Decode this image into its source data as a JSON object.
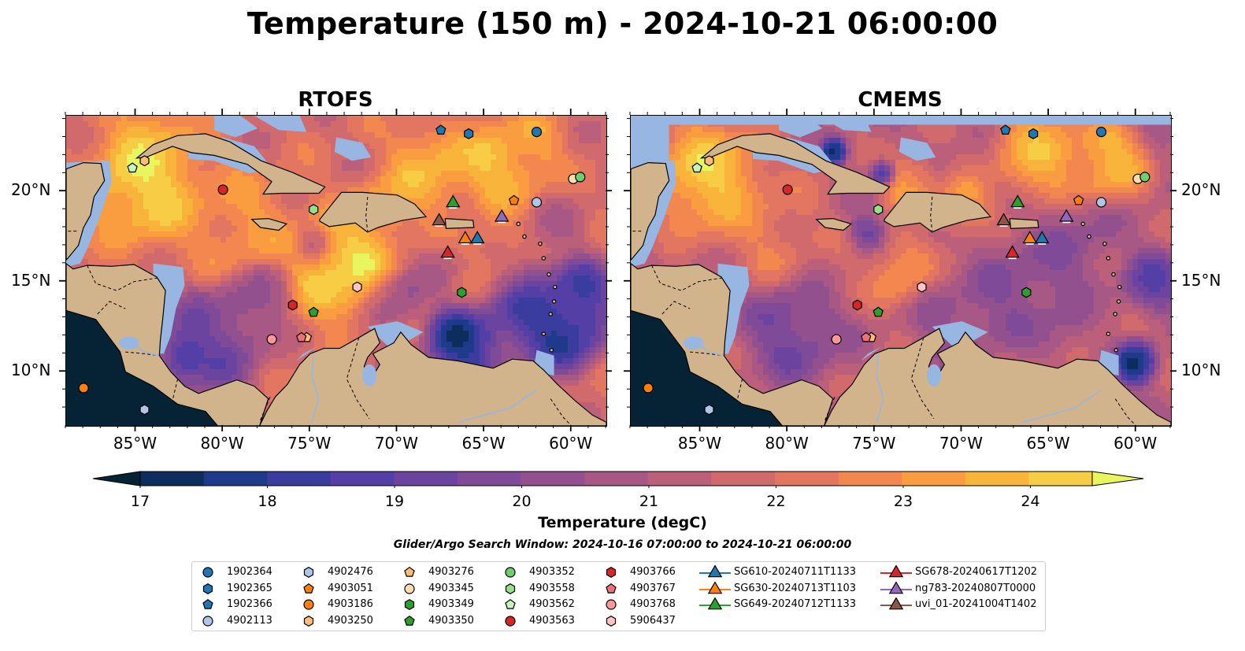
{
  "title": "Temperature (150 m) - 2024-10-21 06:00:00",
  "panels": [
    {
      "title": "RTOFS"
    },
    {
      "title": "CMEMS"
    }
  ],
  "map": {
    "lon_range": [
      -89,
      -58
    ],
    "lat_range": [
      7,
      24.2
    ],
    "x_ticks": [
      "85°W",
      "80°W",
      "75°W",
      "70°W",
      "65°W",
      "60°W"
    ],
    "y_ticks": [
      "20°N",
      "15°N",
      "10°N"
    ],
    "land_color": "#d2b48c",
    "shelf_color": "#97b6e1"
  },
  "colorbar": {
    "label": "Temperature (degC)",
    "ticks": [
      "17",
      "18",
      "19",
      "20",
      "21",
      "22",
      "23",
      "24"
    ],
    "range": [
      17,
      24.5
    ],
    "colors": [
      "#062336",
      "#0c2d5e",
      "#1f3a8a",
      "#3b3d9e",
      "#533fa6",
      "#6b44a0",
      "#7f4b98",
      "#93508e",
      "#a75885",
      "#bc5f7b",
      "#d16a6d",
      "#e27660",
      "#f28750",
      "#f99d40",
      "#f8b43a",
      "#f7cd45",
      "#e8f55e"
    ]
  },
  "search_window": "Glider/Argo Search Window: 2024-10-16 07:00:00 to 2024-10-21 06:00:00",
  "legend": [
    {
      "label": "1902364",
      "marker": "circle",
      "color": "#1f77b4"
    },
    {
      "label": "1902365",
      "marker": "hexagon",
      "color": "#1f77b4"
    },
    {
      "label": "1902366",
      "marker": "pentagon",
      "color": "#1f77b4"
    },
    {
      "label": "4902113",
      "marker": "circle",
      "color": "#aec7e8"
    },
    {
      "label": "4902476",
      "marker": "hexagon",
      "color": "#aec7e8"
    },
    {
      "label": "4903051",
      "marker": "pentagon",
      "color": "#ff7f0e"
    },
    {
      "label": "4903186",
      "marker": "circle",
      "color": "#ff7f0e"
    },
    {
      "label": "4903250",
      "marker": "hexagon",
      "color": "#ffbb78"
    },
    {
      "label": "4903276",
      "marker": "pentagon",
      "color": "#ffbb78"
    },
    {
      "label": "4903345",
      "marker": "circle",
      "color": "#ffddb0"
    },
    {
      "label": "4903349",
      "marker": "hexagon",
      "color": "#2ca02c"
    },
    {
      "label": "4903350",
      "marker": "pentagon",
      "color": "#2ca02c"
    },
    {
      "label": "4903352",
      "marker": "circle",
      "color": "#6fcf6f"
    },
    {
      "label": "4903558",
      "marker": "hexagon",
      "color": "#98df8a"
    },
    {
      "label": "4903562",
      "marker": "pentagon",
      "color": "#c7f5c0"
    },
    {
      "label": "4903563",
      "marker": "circle",
      "color": "#d62728"
    },
    {
      "label": "4903766",
      "marker": "hexagon",
      "color": "#d62728"
    },
    {
      "label": "4903767",
      "marker": "pentagon",
      "color": "#f0707a"
    },
    {
      "label": "4903768",
      "marker": "circle",
      "color": "#ff9896"
    },
    {
      "label": "5906437",
      "marker": "hexagon",
      "color": "#ffc4c4"
    },
    {
      "label": "SG610-20240711T1133",
      "marker": "triangle",
      "color": "#1f77b4"
    },
    {
      "label": "SG630-20240713T1103",
      "marker": "triangle",
      "color": "#ff7f0e"
    },
    {
      "label": "SG649-20240712T1133",
      "marker": "triangle",
      "color": "#2ca02c"
    },
    {
      "label": "SG678-20240617T1202",
      "marker": "triangle",
      "color": "#d62728"
    },
    {
      "label": "ng783-20240807T0000",
      "marker": "triangle",
      "color": "#9467bd"
    },
    {
      "label": "uvi_01-20241004T1402",
      "marker": "triangle",
      "color": "#8c564b"
    }
  ],
  "platforms": [
    {
      "id": "1902364",
      "lon": -62.0,
      "lat": 23.3
    },
    {
      "id": "1902365",
      "lon": -65.9,
      "lat": 23.2
    },
    {
      "id": "1902366",
      "lon": -67.5,
      "lat": 23.4
    },
    {
      "id": "4902113",
      "lon": -62.0,
      "lat": 19.4
    },
    {
      "id": "4902476",
      "lon": -84.5,
      "lat": 7.9
    },
    {
      "id": "4903051",
      "lon": -63.3,
      "lat": 19.5
    },
    {
      "id": "4903186",
      "lon": -88.0,
      "lat": 9.1
    },
    {
      "id": "4903250",
      "lon": -84.5,
      "lat": 21.7
    },
    {
      "id": "4903276",
      "lon": -75.2,
      "lat": 11.9
    },
    {
      "id": "4903345",
      "lon": -59.9,
      "lat": 20.7
    },
    {
      "id": "4903349",
      "lon": -66.3,
      "lat": 14.4
    },
    {
      "id": "4903350",
      "lon": -74.8,
      "lat": 13.3
    },
    {
      "id": "4903352",
      "lon": -59.5,
      "lat": 20.8
    },
    {
      "id": "4903558",
      "lon": -74.8,
      "lat": 19.0
    },
    {
      "id": "4903562",
      "lon": -85.2,
      "lat": 21.3
    },
    {
      "id": "4903563",
      "lon": -80.0,
      "lat": 20.1
    },
    {
      "id": "4903766",
      "lon": -76.0,
      "lat": 13.7
    },
    {
      "id": "4903767",
      "lon": -75.5,
      "lat": 11.9
    },
    {
      "id": "4903768",
      "lon": -77.2,
      "lat": 11.8
    },
    {
      "id": "5906437",
      "lon": -72.3,
      "lat": 14.7
    }
  ],
  "gliders": [
    {
      "id": "SG610-20240711T1133",
      "lon": -65.4,
      "lat": 17.4
    },
    {
      "id": "SG630-20240713T1103",
      "lon": -66.1,
      "lat": 17.4
    },
    {
      "id": "SG649-20240712T1133",
      "lon": -66.8,
      "lat": 19.4
    },
    {
      "id": "SG678-20240617T1202",
      "lon": -67.1,
      "lat": 16.6
    },
    {
      "id": "ng783-20240807T0000",
      "lon": -64.0,
      "lat": 18.6
    },
    {
      "id": "uvi_01-20241004T1402",
      "lon": -67.6,
      "lat": 18.4
    }
  ]
}
